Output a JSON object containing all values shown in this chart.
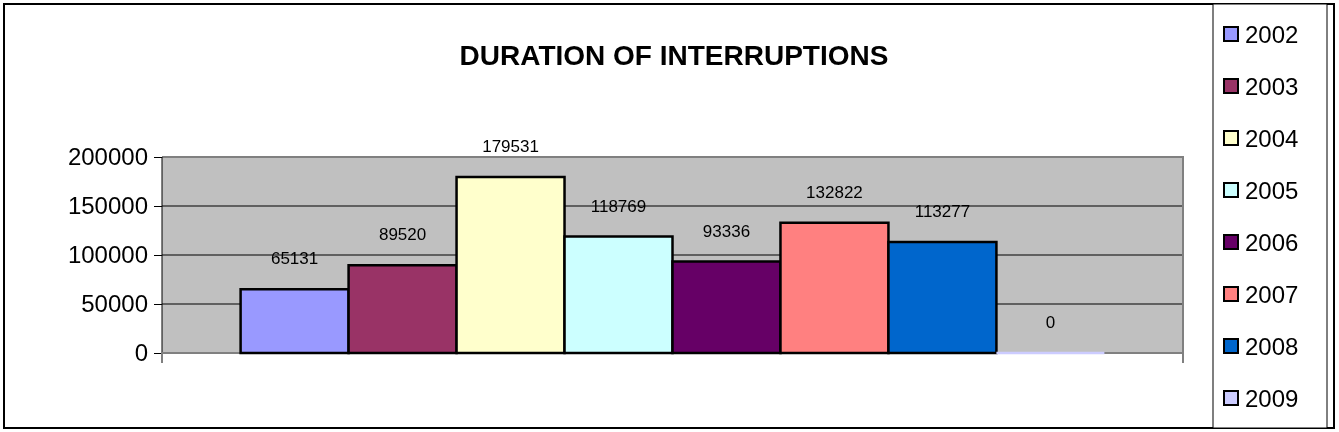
{
  "chart_data": {
    "type": "bar",
    "title": "DURATION OF INTERRUPTIONS",
    "categories": [
      null
    ],
    "series": [
      {
        "name": "2002",
        "color": "#9999ff",
        "values": [
          65131
        ]
      },
      {
        "name": "2003",
        "color": "#993366",
        "values": [
          89520
        ]
      },
      {
        "name": "2004",
        "color": "#ffffcc",
        "values": [
          179531
        ]
      },
      {
        "name": "2005",
        "color": "#ccffff",
        "values": [
          118769
        ]
      },
      {
        "name": "2006",
        "color": "#660066",
        "values": [
          93336
        ]
      },
      {
        "name": "2007",
        "color": "#ff8080",
        "values": [
          132822
        ]
      },
      {
        "name": "2008",
        "color": "#0066cc",
        "values": [
          113277
        ]
      },
      {
        "name": "2009",
        "color": "#ccccff",
        "values": [
          0
        ]
      }
    ],
    "ylim": [
      0,
      200000
    ],
    "yticks": [
      0,
      50000,
      100000,
      150000,
      200000
    ],
    "grid": "y",
    "legend": "right",
    "data_labels": true
  }
}
